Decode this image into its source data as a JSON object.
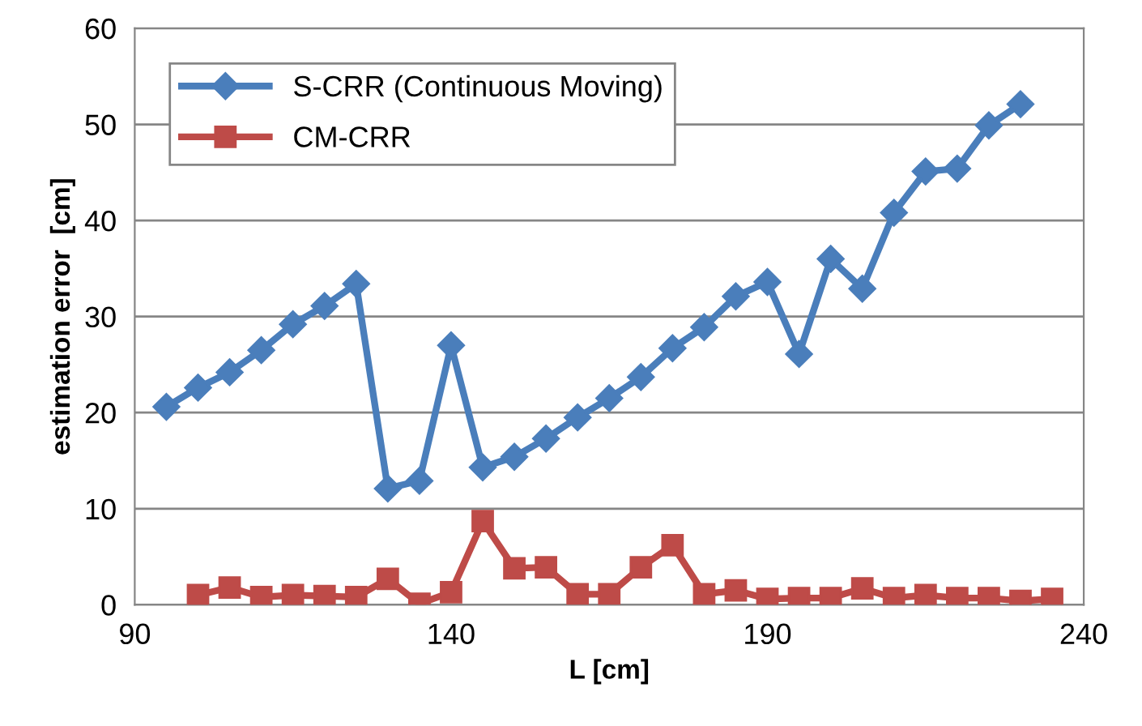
{
  "chart_data": {
    "type": "line",
    "xlabel": "L [cm]",
    "ylabel": "estimation error  [cm]",
    "xlim": [
      90,
      240
    ],
    "xticks": [
      90,
      140,
      190,
      240
    ],
    "ylim": [
      0,
      60
    ],
    "yticks": [
      0,
      10,
      20,
      30,
      40,
      50,
      60
    ],
    "grid": "y",
    "legend": "top left",
    "line_style": "solid",
    "series": [
      {
        "name": "S-CRR (Continuous Moving)",
        "color": "#4a7ebb",
        "marker": "diamond",
        "x": [
          95,
          100,
          105,
          110,
          115,
          120,
          125,
          130,
          135,
          140,
          145,
          150,
          155,
          160,
          165,
          170,
          175,
          180,
          185,
          190,
          195,
          200,
          205,
          210,
          215,
          220,
          225,
          230
        ],
        "values": [
          20.6,
          22.6,
          24.2,
          26.5,
          29.2,
          31.1,
          33.4,
          12.1,
          12.9,
          27.0,
          14.3,
          15.4,
          17.3,
          19.5,
          21.5,
          23.7,
          26.7,
          28.9,
          32.1,
          33.6,
          26.1,
          36.0,
          32.9,
          40.8,
          45.1,
          45.4,
          49.9,
          52.1
        ]
      },
      {
        "name": "CM-CRR",
        "color": "#be4b48",
        "marker": "square",
        "x": [
          100,
          105,
          110,
          115,
          120,
          125,
          130,
          135,
          140,
          145,
          150,
          155,
          160,
          165,
          170,
          175,
          180,
          185,
          190,
          195,
          200,
          205,
          210,
          215,
          220,
          225,
          230,
          235
        ],
        "values": [
          1.0,
          1.8,
          0.8,
          1.0,
          0.9,
          0.8,
          2.7,
          0.1,
          1.3,
          8.7,
          3.8,
          3.9,
          1.1,
          1.1,
          3.9,
          6.2,
          1.1,
          1.5,
          0.6,
          0.7,
          0.7,
          1.7,
          0.7,
          1.0,
          0.7,
          0.7,
          0.4,
          0.6
        ]
      }
    ]
  }
}
